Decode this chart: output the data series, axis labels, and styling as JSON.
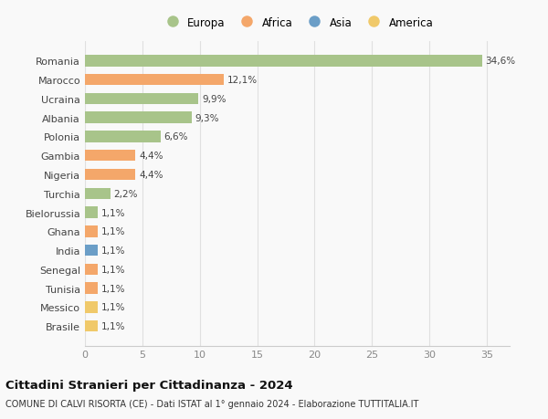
{
  "countries": [
    "Romania",
    "Marocco",
    "Ucraina",
    "Albania",
    "Polonia",
    "Gambia",
    "Nigeria",
    "Turchia",
    "Bielorussia",
    "Ghana",
    "India",
    "Senegal",
    "Tunisia",
    "Messico",
    "Brasile"
  ],
  "values": [
    34.6,
    12.1,
    9.9,
    9.3,
    6.6,
    4.4,
    4.4,
    2.2,
    1.1,
    1.1,
    1.1,
    1.1,
    1.1,
    1.1,
    1.1
  ],
  "labels": [
    "34,6%",
    "12,1%",
    "9,9%",
    "9,3%",
    "6,6%",
    "4,4%",
    "4,4%",
    "2,2%",
    "1,1%",
    "1,1%",
    "1,1%",
    "1,1%",
    "1,1%",
    "1,1%",
    "1,1%"
  ],
  "colors": [
    "#a8c48a",
    "#f4a76a",
    "#a8c48a",
    "#a8c48a",
    "#a8c48a",
    "#f4a76a",
    "#f4a76a",
    "#a8c48a",
    "#a8c48a",
    "#f4a76a",
    "#6b9ec7",
    "#f4a76a",
    "#f4a76a",
    "#f0c96a",
    "#f0c96a"
  ],
  "legend_labels": [
    "Europa",
    "Africa",
    "Asia",
    "America"
  ],
  "legend_colors": [
    "#a8c48a",
    "#f4a76a",
    "#6b9ec7",
    "#f0c96a"
  ],
  "title": "Cittadini Stranieri per Cittadinanza - 2024",
  "subtitle": "COMUNE DI CALVI RISORTA (CE) - Dati ISTAT al 1° gennaio 2024 - Elaborazione TUTTITALIA.IT",
  "xlim": [
    0,
    37
  ],
  "xticks": [
    0,
    5,
    10,
    15,
    20,
    25,
    30,
    35
  ],
  "background_color": "#f9f9f9",
  "grid_color": "#e0e0e0"
}
